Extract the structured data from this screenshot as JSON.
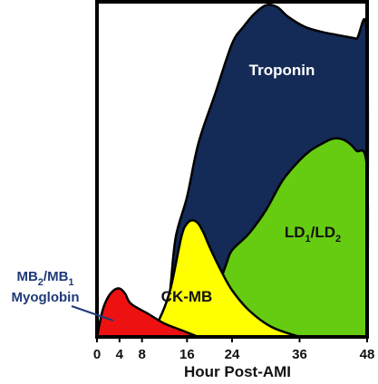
{
  "chart_data": {
    "type": "area",
    "xlabel": "Hour Post-AMI",
    "ylabel": "",
    "xticks": [
      0,
      4,
      8,
      16,
      24,
      36,
      48
    ],
    "xlim": [
      0,
      48
    ],
    "ylim": [
      0,
      100
    ],
    "series": [
      {
        "name": "Troponin",
        "label_parts": [
          [
            "Troponin",
            "normal"
          ]
        ],
        "color": "#142b57",
        "points": [
          [
            12,
            0
          ],
          [
            13,
            14
          ],
          [
            14,
            30
          ],
          [
            16,
            42
          ],
          [
            18,
            58
          ],
          [
            21,
            73
          ],
          [
            24,
            88
          ],
          [
            26,
            93
          ],
          [
            28,
            97
          ],
          [
            30,
            99.5
          ],
          [
            32,
            99
          ],
          [
            34,
            96
          ],
          [
            37,
            93
          ],
          [
            40,
            91.5
          ],
          [
            43,
            90.5
          ],
          [
            46,
            89.5
          ],
          [
            48,
            88.5
          ],
          [
            48,
            0
          ]
        ]
      },
      {
        "name": "LD1/LD2",
        "label_parts": [
          [
            "LD",
            "normal"
          ],
          [
            "1",
            "sub"
          ],
          [
            "/LD",
            "normal"
          ],
          [
            "2",
            "sub"
          ]
        ],
        "color": "#66cc11",
        "points": [
          [
            20,
            0
          ],
          [
            21,
            10
          ],
          [
            22,
            17
          ],
          [
            23,
            22
          ],
          [
            24,
            26
          ],
          [
            27,
            31
          ],
          [
            30,
            38
          ],
          [
            33,
            47
          ],
          [
            36,
            53
          ],
          [
            38,
            56
          ],
          [
            40,
            58
          ],
          [
            42,
            59.5
          ],
          [
            44,
            59
          ],
          [
            46,
            56
          ],
          [
            48,
            50
          ],
          [
            48,
            0
          ]
        ]
      },
      {
        "name": "CK-MB",
        "label_parts": [
          [
            "CK-MB",
            "normal"
          ]
        ],
        "color": "#ffff00",
        "points": [
          [
            9,
            0
          ],
          [
            11,
            5
          ],
          [
            13,
            14
          ],
          [
            15,
            30
          ],
          [
            16,
            34
          ],
          [
            17,
            35
          ],
          [
            18,
            34
          ],
          [
            19,
            31
          ],
          [
            20,
            27
          ],
          [
            22,
            20
          ],
          [
            24,
            14
          ],
          [
            27,
            8
          ],
          [
            31,
            3
          ],
          [
            36,
            0
          ]
        ]
      },
      {
        "name": "MB2/MB1 Myoglobin",
        "label_parts": [
          [
            "MB",
            "normal"
          ],
          [
            "2",
            "sub"
          ],
          [
            "/MB",
            "normal"
          ],
          [
            "1",
            "sub"
          ],
          [
            "\nMyoglobin",
            "normal"
          ]
        ],
        "color": "#ee1111",
        "points": [
          [
            0,
            0
          ],
          [
            1,
            8
          ],
          [
            2,
            12
          ],
          [
            3,
            14
          ],
          [
            4,
            14.5
          ],
          [
            5,
            13
          ],
          [
            6,
            10
          ],
          [
            9,
            7
          ],
          [
            12,
            4
          ],
          [
            15,
            2
          ],
          [
            18,
            0
          ]
        ]
      }
    ]
  }
}
